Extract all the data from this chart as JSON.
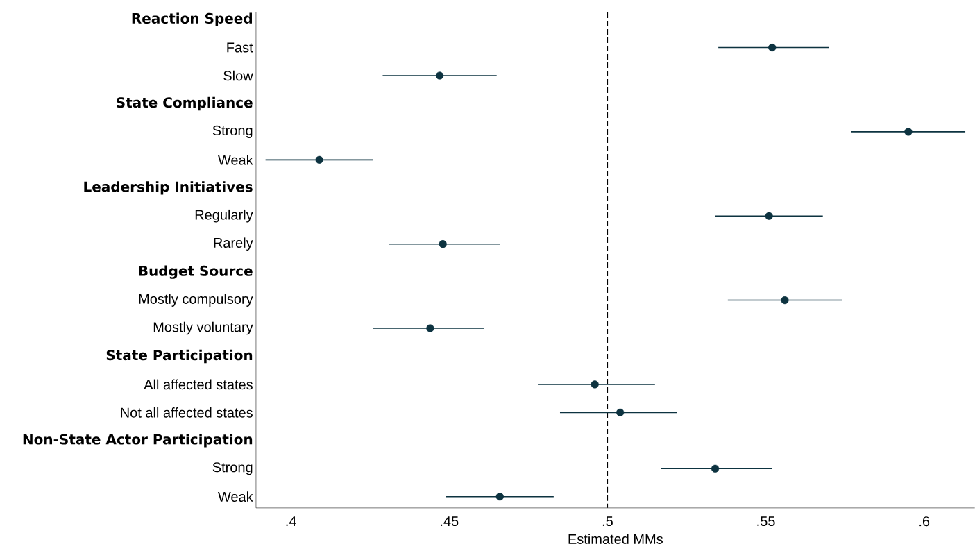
{
  "chart_data": {
    "type": "scatter",
    "orientation": "horizontal",
    "xlabel": "Estimated MMs",
    "color": "#0d3340",
    "marker": "circle",
    "categories": [
      "Reaction Speed",
      "Fast",
      "Slow",
      "State Compliance",
      "Strong",
      "Weak",
      "Leadership Initiatives",
      "Regularly",
      "Rarely",
      "Budget Source",
      "Mostly compulsory",
      "Mostly voluntary",
      "State Participation",
      "All affected states",
      "Not all affected states",
      "Non-State Actor Participation",
      "Strong",
      "Weak"
    ],
    "values": [
      null,
      0.552,
      0.447,
      null,
      0.595,
      0.409,
      null,
      0.551,
      0.448,
      null,
      0.556,
      0.444,
      null,
      0.496,
      0.504,
      null,
      0.534,
      0.466
    ],
    "errors": [
      null,
      [
        0.535,
        0.57
      ],
      [
        0.429,
        0.465
      ],
      null,
      [
        0.577,
        0.613
      ],
      [
        0.392,
        0.426
      ],
      null,
      [
        0.534,
        0.568
      ],
      [
        0.431,
        0.466
      ],
      null,
      [
        0.538,
        0.574
      ],
      [
        0.426,
        0.461
      ],
      null,
      [
        0.478,
        0.515
      ],
      [
        0.485,
        0.522
      ],
      null,
      [
        0.517,
        0.552
      ],
      [
        0.449,
        0.483
      ]
    ],
    "xlim": [
      0.389,
      0.616
    ],
    "xticks": [
      {
        "value": 0.4,
        "label": ".4"
      },
      {
        "value": 0.45,
        "label": ".45"
      },
      {
        "value": 0.5,
        "label": ".5"
      },
      {
        "value": 0.55,
        "label": ".55"
      },
      {
        "value": 0.6,
        "label": ".6"
      }
    ],
    "ref_lines": [
      {
        "axis": "x",
        "value": 0.5,
        "line_style": "dashed",
        "color": "#000000"
      }
    ],
    "grid": false
  }
}
